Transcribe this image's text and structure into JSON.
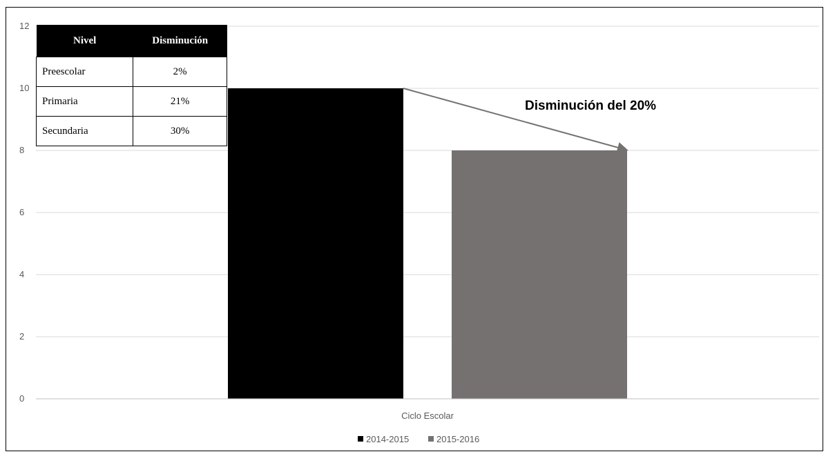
{
  "chart_data": {
    "type": "bar",
    "categories": [
      "Ciclo Escolar"
    ],
    "series": [
      {
        "name": "2014-2015",
        "values": [
          10
        ],
        "color": "#000000"
      },
      {
        "name": "2015-2016",
        "values": [
          8
        ],
        "color": "#767171"
      }
    ],
    "xlabel": "Ciclo Escolar",
    "ylabel": "",
    "ylim": [
      0,
      12
    ],
    "yticks": [
      0,
      2,
      4,
      6,
      8,
      10,
      12
    ],
    "grid": true,
    "legend_position": "bottom",
    "annotation": {
      "text": "Disminución del 20%",
      "arrow_from": "2014-2015",
      "arrow_to": "2015-2016"
    }
  },
  "table": {
    "headers": [
      "Nivel",
      "Disminución"
    ],
    "rows": [
      [
        "Preescolar",
        "2%"
      ],
      [
        "Primaria",
        "21%"
      ],
      [
        "Secundaria",
        "30%"
      ]
    ]
  }
}
